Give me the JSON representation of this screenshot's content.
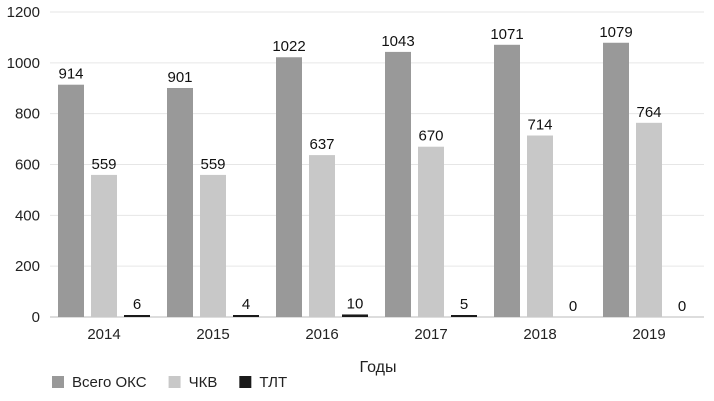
{
  "chart_data": {
    "type": "bar",
    "categories": [
      "2014",
      "2015",
      "2016",
      "2017",
      "2018",
      "2019"
    ],
    "series": [
      {
        "name": "Всего ОКС",
        "values": [
          914,
          901,
          1022,
          1043,
          1071,
          1079
        ],
        "color": "#999999"
      },
      {
        "name": "ЧКВ",
        "values": [
          559,
          559,
          637,
          670,
          714,
          764
        ],
        "color": "#c8c8c8"
      },
      {
        "name": "ТЛТ",
        "values": [
          6,
          4,
          10,
          5,
          0,
          0
        ],
        "color": "#1a1a1a"
      }
    ],
    "title": "",
    "xlabel": "Годы",
    "ylabel": "",
    "ylim": [
      0,
      1200
    ],
    "yticks": [
      0,
      200,
      400,
      600,
      800,
      1000,
      1200
    ],
    "grid": "horizontal",
    "legend_position": "bottom-left"
  }
}
